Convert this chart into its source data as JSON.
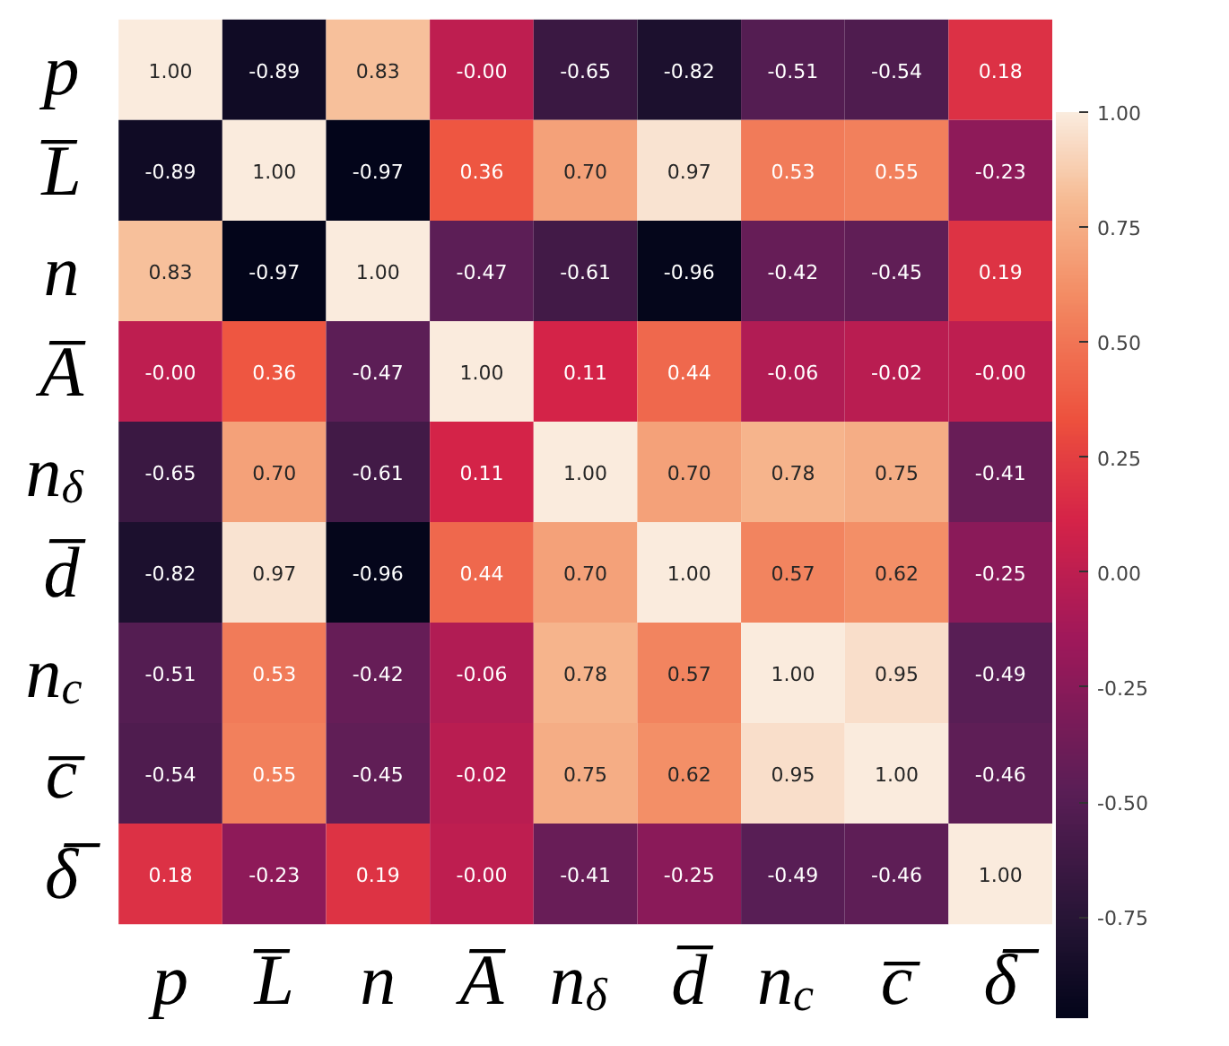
{
  "chart_data": {
    "type": "heatmap",
    "categories": [
      "p",
      "L̅",
      "n",
      "A̅",
      "n$_{δ}$",
      "d̅",
      "n$_{c}$",
      "c̅",
      "δ̅"
    ],
    "y_categories": [
      "p",
      "L̅",
      "n",
      "A̅",
      "n$_{δ}$",
      "d̅",
      "n$_{c}$",
      "c̅",
      "δ̅"
    ],
    "cells": [
      [
        1.0,
        -0.89,
        0.83,
        -0.0,
        -0.65,
        -0.82,
        -0.51,
        -0.54,
        0.18
      ],
      [
        -0.89,
        1.0,
        -0.97,
        0.36,
        0.7,
        0.97,
        0.53,
        0.55,
        -0.23
      ],
      [
        0.83,
        -0.97,
        1.0,
        -0.47,
        -0.61,
        -0.96,
        -0.42,
        -0.45,
        0.19
      ],
      [
        -0.0,
        0.36,
        -0.47,
        1.0,
        0.11,
        0.44,
        -0.06,
        -0.02,
        -0.0
      ],
      [
        -0.65,
        0.7,
        -0.61,
        0.11,
        1.0,
        0.7,
        0.78,
        0.75,
        -0.41
      ],
      [
        -0.82,
        0.97,
        -0.96,
        0.44,
        0.7,
        1.0,
        0.57,
        0.62,
        -0.25
      ],
      [
        -0.51,
        0.53,
        -0.42,
        -0.06,
        0.78,
        0.57,
        1.0,
        0.95,
        -0.49
      ],
      [
        -0.54,
        0.55,
        -0.45,
        -0.02,
        0.75,
        0.62,
        0.95,
        1.0,
        -0.46
      ],
      [
        0.18,
        -0.23,
        0.19,
        -0.0,
        -0.41,
        -0.25,
        -0.49,
        -0.46,
        1.0
      ]
    ],
    "cell_labels": [
      [
        "1.00",
        "-0.89",
        "0.83",
        "-0.00",
        "-0.65",
        "-0.82",
        "-0.51",
        "-0.54",
        "0.18"
      ],
      [
        "-0.89",
        "1.00",
        "-0.97",
        "0.36",
        "0.70",
        "0.97",
        "0.53",
        "0.55",
        "-0.23"
      ],
      [
        "0.83",
        "-0.97",
        "1.00",
        "-0.47",
        "-0.61",
        "-0.96",
        "-0.42",
        "-0.45",
        "0.19"
      ],
      [
        "-0.00",
        "0.36",
        "-0.47",
        "1.00",
        "0.11",
        "0.44",
        "-0.06",
        "-0.02",
        "-0.00"
      ],
      [
        "-0.65",
        "0.70",
        "-0.61",
        "0.11",
        "1.00",
        "0.70",
        "0.78",
        "0.75",
        "-0.41"
      ],
      [
        "-0.82",
        "0.97",
        "-0.96",
        "0.44",
        "0.70",
        "1.00",
        "0.57",
        "0.62",
        "-0.25"
      ],
      [
        "-0.51",
        "0.53",
        "-0.42",
        "-0.06",
        "0.78",
        "0.57",
        "1.00",
        "0.95",
        "-0.49"
      ],
      [
        "-0.54",
        "0.55",
        "-0.45",
        "-0.02",
        "0.75",
        "0.62",
        "0.95",
        "1.00",
        "-0.46"
      ],
      [
        "0.18",
        "-0.23",
        "0.19",
        "-0.00",
        "-0.41",
        "-0.25",
        "-0.49",
        "-0.46",
        "1.00"
      ]
    ],
    "clim": [
      -0.97,
      1.0
    ],
    "cticks": [
      {
        "value": -0.75,
        "label": "-0.75"
      },
      {
        "value": -0.5,
        "label": "-0.50"
      },
      {
        "value": -0.25,
        "label": "-0.25"
      },
      {
        "value": 0,
        "label": "0.00"
      },
      {
        "value": 0.25,
        "label": "0.25"
      },
      {
        "value": 0.5,
        "label": "0.50"
      },
      {
        "value": 0.75,
        "label": "0.75"
      },
      {
        "value": 1.0,
        "label": "1.00"
      }
    ]
  }
}
